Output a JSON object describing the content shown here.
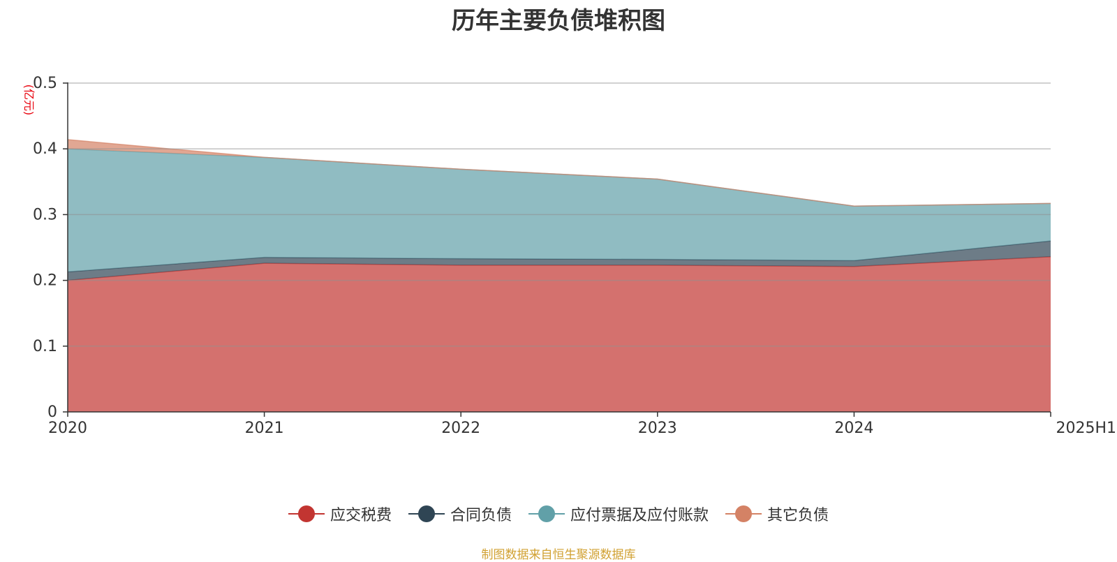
{
  "chart_data": {
    "type": "area",
    "title": "历年主要负债堆积图",
    "ylabel": "(亿元)",
    "x": [
      "2020",
      "2021",
      "2022",
      "2023",
      "2024",
      "2025H1"
    ],
    "ylim": [
      0,
      0.5
    ],
    "yticks": [
      "0",
      "0.1",
      "0.2",
      "0.3",
      "0.4",
      "0.5"
    ],
    "stacked": true,
    "grid": true,
    "legend_position": "bottom",
    "series": [
      {
        "name": "应交税费",
        "color": "#c23531",
        "values": [
          0.2,
          0.226,
          0.223,
          0.223,
          0.221,
          0.236
        ]
      },
      {
        "name": "合同负债",
        "color": "#2f4554",
        "values": [
          0.013,
          0.009,
          0.01,
          0.009,
          0.009,
          0.024
        ]
      },
      {
        "name": "应付票据及应付账款",
        "color": "#61a0a8",
        "values": [
          0.187,
          0.152,
          0.136,
          0.122,
          0.083,
          0.057
        ]
      },
      {
        "name": "其它负债",
        "color": "#d48265",
        "values": [
          0.014,
          0.0,
          0.0,
          0.0,
          0.0,
          0.0
        ]
      }
    ]
  },
  "source_note": "制图数据来自恒生聚源数据库"
}
